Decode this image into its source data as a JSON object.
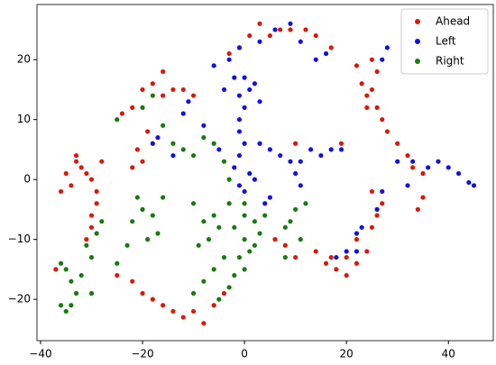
{
  "chart_data": {
    "type": "scatter",
    "xlim": [
      -40.7,
      48.8
    ],
    "ylim": [
      -26.9,
      29.2
    ],
    "xticks": [
      {
        "value": -40,
        "label": "−40"
      },
      {
        "value": -20,
        "label": "−20"
      },
      0,
      20,
      40
    ],
    "yticks": [
      {
        "value": -20,
        "label": "−20"
      },
      {
        "value": -10,
        "label": "−10"
      },
      0,
      10,
      20
    ],
    "legend": "upper right",
    "series": [
      {
        "name": "Ahead",
        "color": "#d81a0a",
        "x": [
          25,
          26,
          25,
          26,
          27,
          28,
          30,
          32,
          33,
          35,
          22,
          23,
          24,
          24,
          3,
          5,
          7,
          9,
          12,
          14,
          17,
          -1,
          -3,
          1,
          -33,
          -32,
          -31,
          -30,
          -29,
          -29,
          -30,
          -30,
          -31,
          -34,
          -35,
          -36,
          -37,
          -28,
          -33,
          -20,
          -18,
          -16,
          -14,
          -12,
          -10,
          -22,
          -19,
          -21,
          -20,
          -22,
          -16,
          -24,
          -25,
          -22,
          -20,
          -18,
          -16,
          -14,
          -12,
          -10,
          -8,
          -6,
          -4,
          18,
          20,
          22,
          24,
          25,
          26,
          27,
          25,
          22,
          20,
          16,
          14,
          10,
          8,
          6,
          17,
          10,
          19,
          35,
          34
        ],
        "values": [
          20,
          18,
          15,
          12,
          10,
          8,
          6,
          4,
          2,
          1,
          19,
          16,
          14,
          12,
          26,
          24,
          25,
          25,
          25,
          24,
          22,
          22,
          21,
          24,
          3,
          2,
          1,
          0,
          -2,
          -4,
          -6,
          -8,
          -10,
          -1,
          1,
          -2,
          -15,
          3,
          4,
          15,
          16,
          14,
          15,
          15,
          14,
          12,
          8,
          5,
          3,
          2,
          18,
          11,
          -16,
          -17,
          -19,
          -20,
          -21,
          -22,
          -23,
          -22,
          -24,
          -21,
          -19,
          -15,
          -16,
          -14,
          -12,
          -8,
          -6,
          -4,
          -2,
          -10,
          -13,
          -14,
          -12,
          -13,
          -11,
          -10,
          -13,
          6,
          6,
          -3,
          -5
        ]
      },
      {
        "name": "Left",
        "color": "#1212e0",
        "x": [
          -3,
          -2,
          0,
          2,
          -4,
          -1,
          1,
          3,
          -1,
          0,
          -1,
          0,
          -1,
          -2,
          1,
          -1,
          2,
          3,
          5,
          7,
          9,
          11,
          13,
          15,
          17,
          19,
          10,
          11,
          5,
          4,
          0,
          -5,
          -8,
          -11,
          -12,
          -17,
          -18,
          -14,
          -1,
          3,
          6,
          9,
          11,
          14,
          -6,
          38,
          40,
          42,
          44,
          45,
          36,
          33,
          30,
          32,
          27,
          26,
          22,
          22,
          23,
          20,
          18,
          16,
          28,
          27
        ],
        "values": [
          20,
          17,
          17,
          16,
          15,
          14,
          15,
          13,
          10,
          12,
          8,
          6,
          4,
          2,
          1,
          -1,
          0,
          6,
          5,
          4,
          3,
          3,
          5,
          4,
          5,
          5,
          1,
          -1,
          -3,
          -4,
          -2,
          5,
          9,
          13,
          11,
          7,
          6,
          4,
          22,
          23,
          25,
          26,
          23,
          20,
          19,
          3,
          2,
          1,
          -0.5,
          -1,
          2,
          3,
          3,
          -1,
          -2,
          -5,
          -9,
          -12,
          -8,
          -12,
          -13,
          21,
          22,
          20
        ]
      },
      {
        "name": "Right",
        "color": "#1a7a12",
        "x": [
          -35,
          -34,
          -33,
          -35,
          -36,
          -32,
          -30,
          -31,
          -29,
          -28,
          -36,
          -30,
          -34,
          -20,
          -22,
          -18,
          -17,
          -19,
          -23,
          -25,
          -21,
          -16,
          -10,
          -8,
          -7,
          -6,
          -9,
          -4,
          -6,
          -8,
          -10,
          -5,
          -3,
          -2,
          -5,
          -3,
          -2,
          0,
          1,
          -1,
          0,
          2,
          3,
          4,
          2,
          8,
          9,
          10,
          11,
          12,
          8,
          -8,
          -10,
          -12,
          -14,
          -6,
          -4,
          -3,
          -25,
          -20,
          -18,
          -16,
          0,
          0
        ],
        "values": [
          -15,
          -17,
          -19,
          -22,
          -21,
          -16,
          -13,
          -11,
          -9,
          -7,
          -14,
          -19,
          -21,
          -5,
          -7,
          -6,
          -9,
          -10,
          -11,
          -14,
          -3,
          -3,
          -4,
          -7,
          -10,
          -6,
          -11,
          -13,
          -15,
          -17,
          -19,
          -20,
          -18,
          -16,
          -8,
          -4,
          -8,
          -10,
          -12,
          -13,
          -15,
          -11,
          -9,
          -6,
          -7,
          -8,
          -7,
          -5,
          -10,
          -4,
          -13,
          7,
          4,
          5,
          6,
          6,
          3,
          0,
          10,
          12,
          14,
          9,
          -4,
          -6
        ]
      }
    ]
  }
}
